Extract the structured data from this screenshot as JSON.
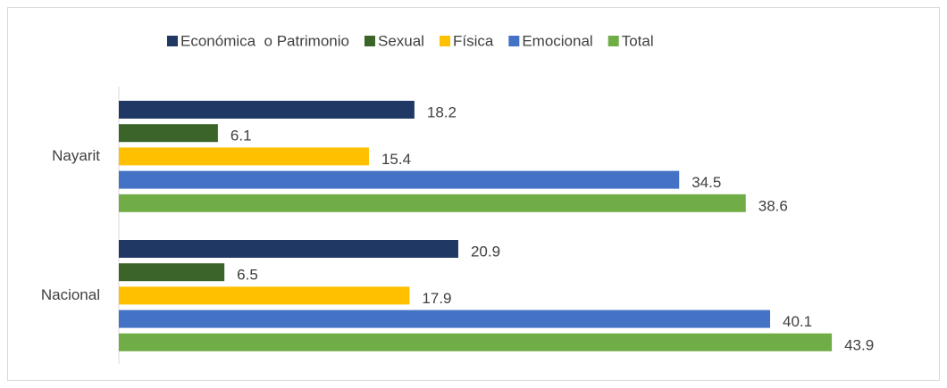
{
  "chart_data": {
    "type": "bar",
    "orientation": "horizontal",
    "categories": [
      "Nayarit",
      "Nacional"
    ],
    "series": [
      {
        "name": "Económica  o Patrimonio",
        "color": "#203864",
        "values": [
          18.2,
          20.9
        ]
      },
      {
        "name": "Sexual",
        "color": "#3b6528",
        "values": [
          6.1,
          6.5
        ]
      },
      {
        "name": "Física",
        "color": "#ffc000",
        "values": [
          15.4,
          17.9
        ]
      },
      {
        "name": "Emocional",
        "color": "#4472c4",
        "values": [
          34.5,
          40.1
        ]
      },
      {
        "name": "Total",
        "color": "#70ad47",
        "values": [
          38.6,
          43.9
        ]
      }
    ],
    "xlim": [
      0,
      50
    ],
    "legend": "top"
  }
}
